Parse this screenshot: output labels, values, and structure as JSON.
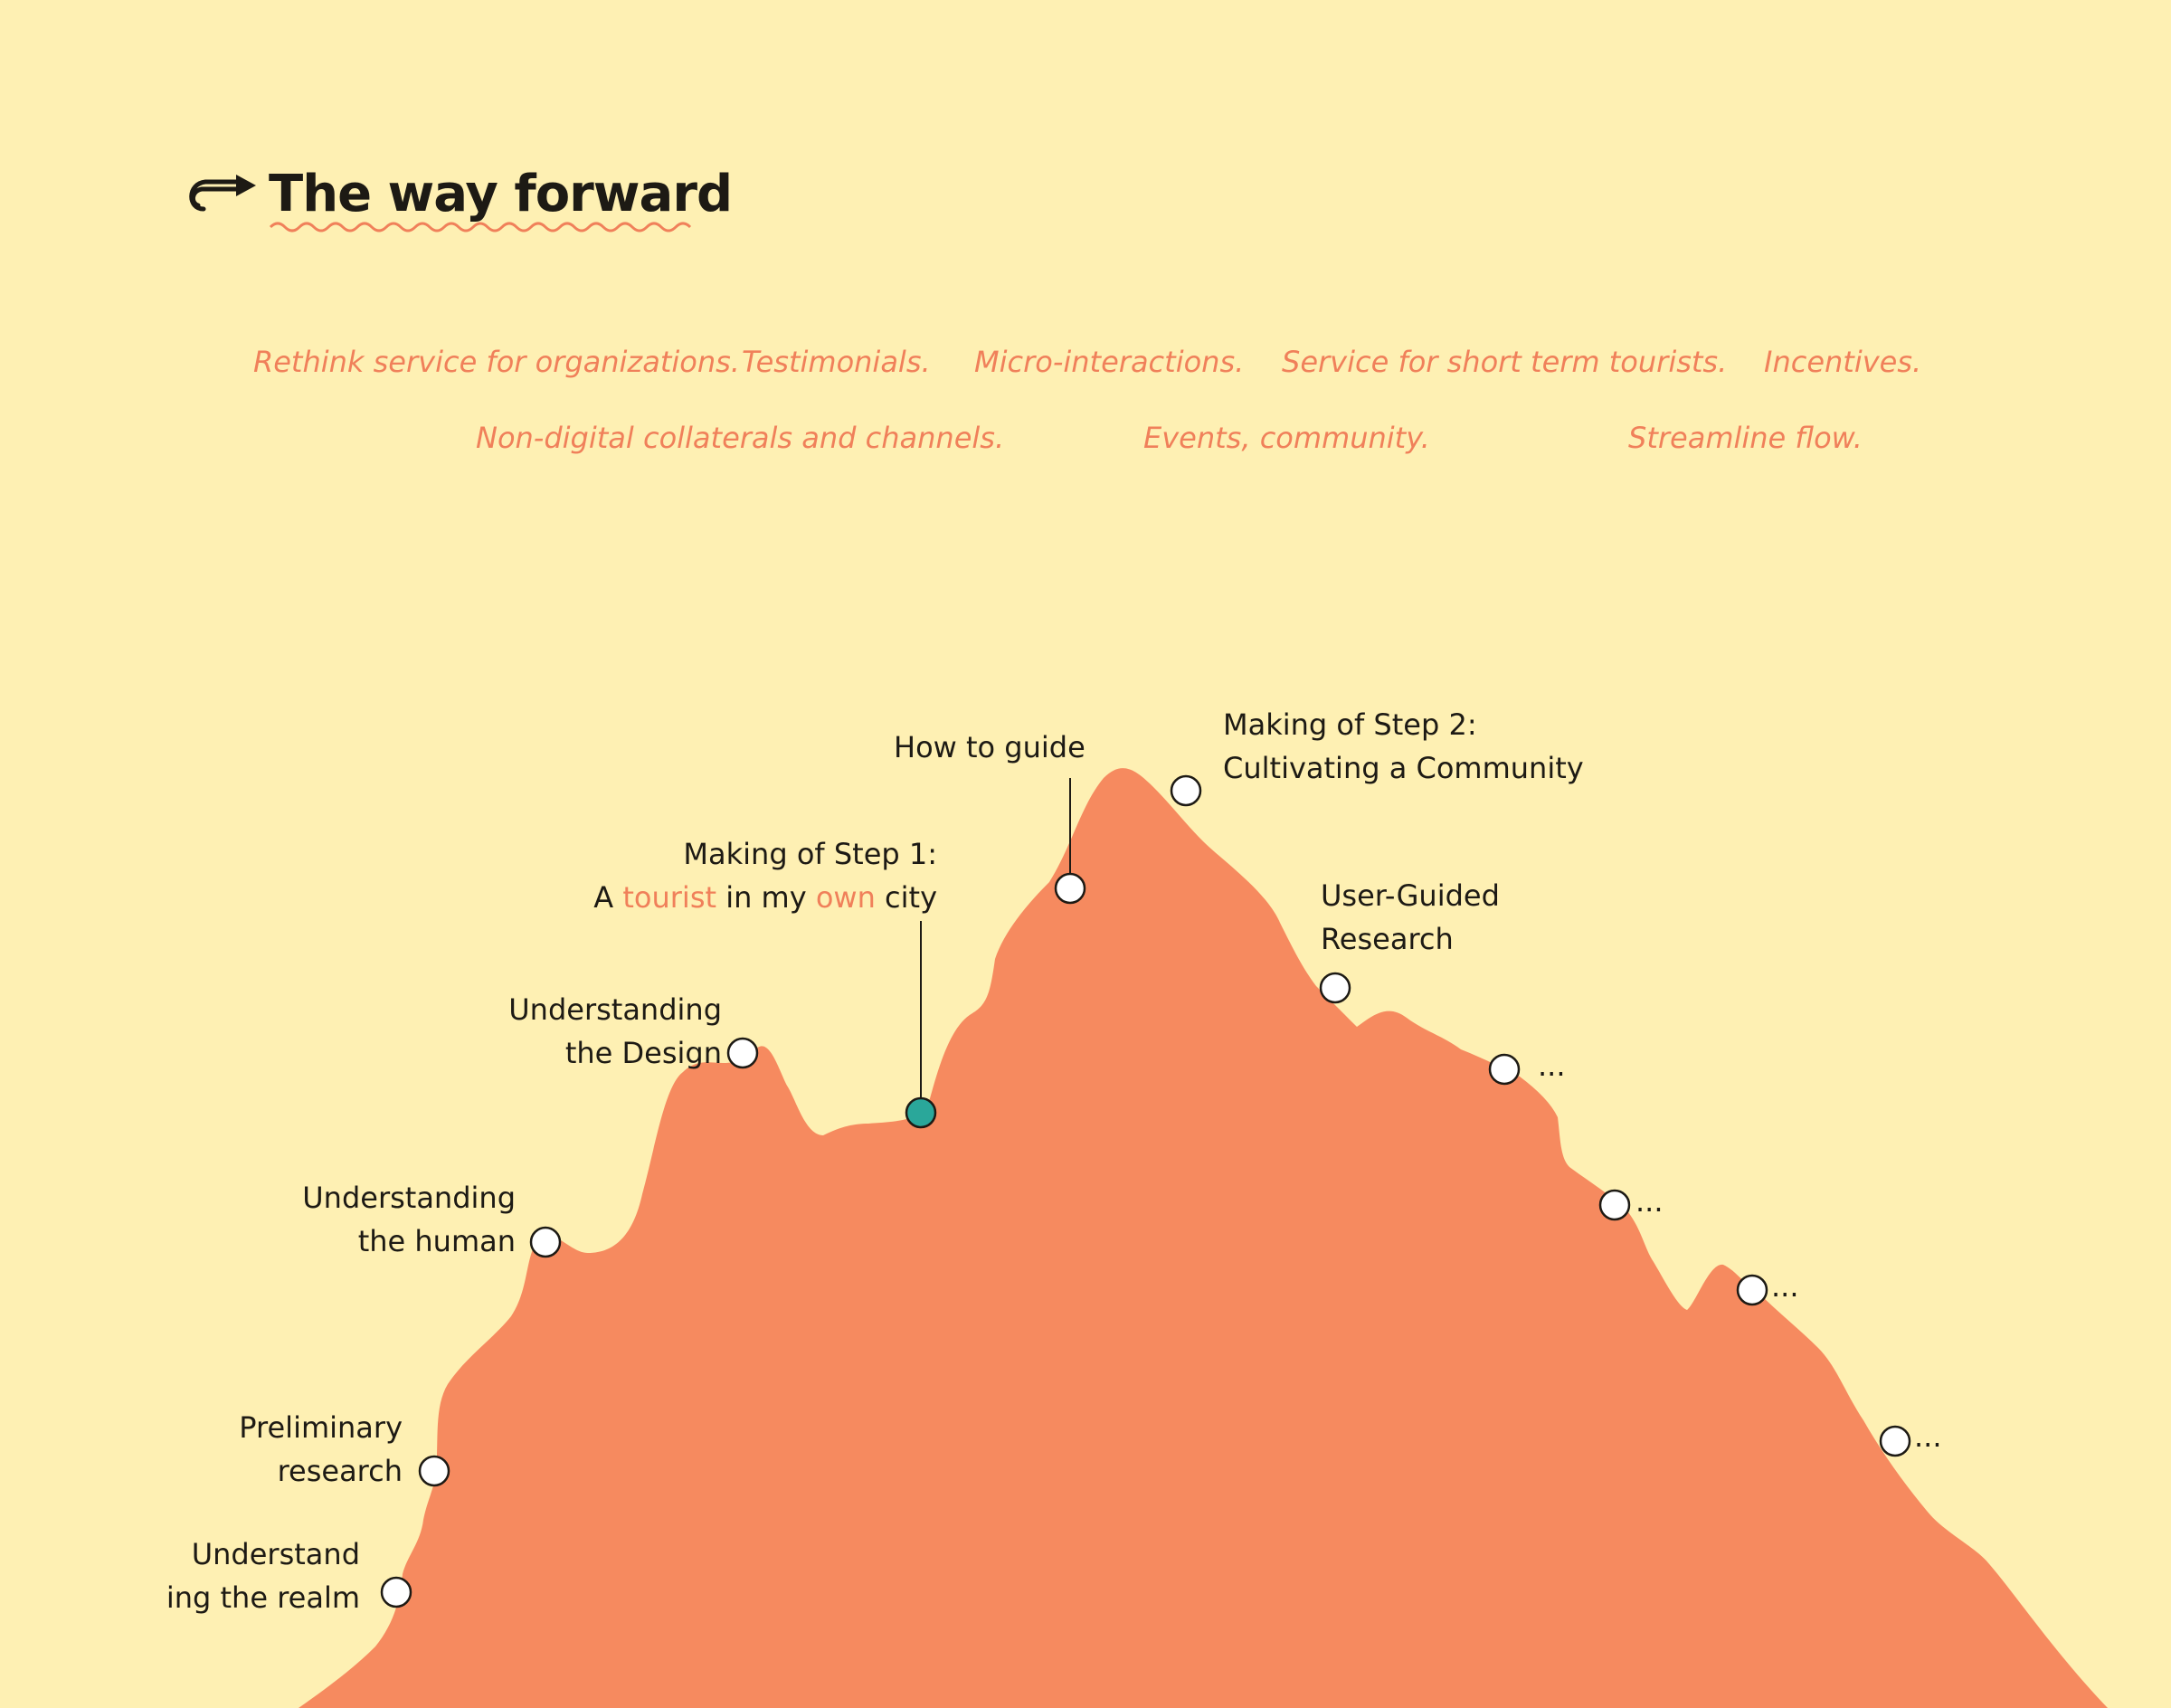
{
  "title": "The way forward",
  "colors": {
    "background": "#FEF0B3",
    "mountain": "#F68A5F",
    "accent": "#F0805A",
    "marker_current": "#2AA79A",
    "marker_default": "#FFFFFF"
  },
  "ideas": [
    "Rethink service for organizations.",
    "Testimonials.",
    "Micro-interactions.",
    "Service for short term tourists.",
    "Incentives.",
    "Non-digital collaterals and channels.",
    "Events, community.",
    "Streamline flow."
  ],
  "milestones": {
    "realm": {
      "line1": "Understand",
      "line2": "ing the realm"
    },
    "preliminary": {
      "line1": "Preliminary",
      "line2": "research"
    },
    "human": {
      "line1": "Understanding",
      "line2": "the human"
    },
    "design": {
      "line1": "Understanding",
      "line2": "the Design"
    },
    "step1": {
      "line1": "Making of Step 1:",
      "line2_a": "A",
      "line2_b": "tourist",
      "line2_c": "in my",
      "line2_d": "own",
      "line2_e": "city",
      "state": "current"
    },
    "guide": {
      "line1": "How to guide"
    },
    "step2": {
      "line1": "Making of Step 2:",
      "line2": "Cultivating a Community"
    },
    "user_guided": {
      "line1": "User-Guided",
      "line2": "Research"
    },
    "future": [
      "...",
      "...",
      "...",
      "..."
    ]
  }
}
